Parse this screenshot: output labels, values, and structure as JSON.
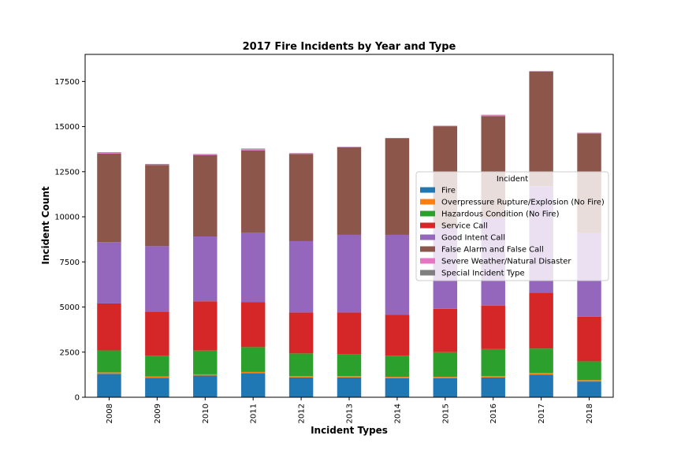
{
  "chart_data": {
    "type": "bar",
    "stacked": true,
    "title": "2017 Fire Incidents by Year and Type",
    "xlabel": "Incident Types",
    "ylabel": "Incident Count",
    "categories": [
      "2008",
      "2009",
      "2010",
      "2011",
      "2012",
      "2013",
      "2014",
      "2015",
      "2016",
      "2017",
      "2018"
    ],
    "ylim": [
      0,
      19000
    ],
    "yticks": [
      0,
      2500,
      5000,
      7500,
      10000,
      12500,
      15000,
      17500
    ],
    "legend_title": "Incident",
    "legend_position": "center-right",
    "grid": false,
    "series": [
      {
        "name": "Fire",
        "color": "#1f77b4",
        "values": [
          1300,
          1080,
          1200,
          1330,
          1100,
          1100,
          1050,
          1050,
          1100,
          1250,
          870
        ]
      },
      {
        "name": "Overpressure Rupture/Explosion (No Fire)",
        "color": "#ff7f0e",
        "values": [
          80,
          70,
          70,
          70,
          80,
          70,
          80,
          80,
          80,
          100,
          80
        ]
      },
      {
        "name": "Hazardous Condition (No Fire)",
        "color": "#2ca02c",
        "values": [
          1220,
          1150,
          1320,
          1380,
          1250,
          1230,
          1180,
          1370,
          1490,
          1350,
          1040
        ]
      },
      {
        "name": "Service Call",
        "color": "#d62728",
        "values": [
          2600,
          2450,
          2730,
          2500,
          2270,
          2300,
          2270,
          2400,
          2410,
          3100,
          2470
        ]
      },
      {
        "name": "Good Intent Call",
        "color": "#9467bd",
        "values": [
          3400,
          3620,
          3590,
          3850,
          3950,
          4300,
          4420,
          4500,
          4850,
          5900,
          4640
        ]
      },
      {
        "name": "False Alarm and False Call",
        "color": "#8c564b",
        "values": [
          4900,
          4500,
          4500,
          4550,
          4830,
          4850,
          5350,
          5620,
          5640,
          6350,
          5520
        ]
      },
      {
        "name": "Severe Weather/Natural Disaster",
        "color": "#e377c2",
        "values": [
          50,
          30,
          50,
          80,
          40,
          20,
          10,
          20,
          60,
          20,
          30
        ]
      },
      {
        "name": "Special Incident Type",
        "color": "#7f7f7f",
        "values": [
          30,
          30,
          20,
          20,
          10,
          10,
          10,
          10,
          20,
          10,
          10
        ]
      }
    ]
  }
}
